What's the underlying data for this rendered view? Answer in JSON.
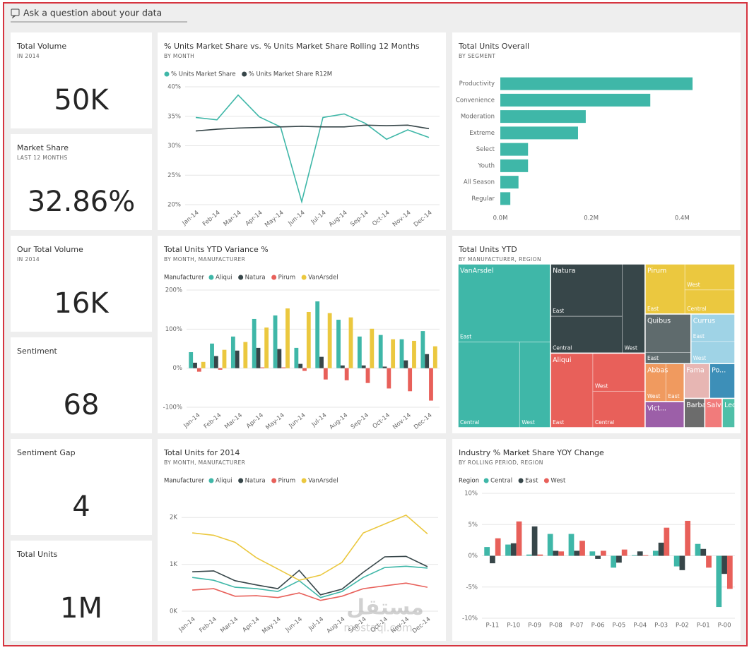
{
  "question_box": "Ask a question about your data",
  "cards": [
    {
      "title": "Total Volume",
      "subtitle": "IN 2014",
      "value": "50K"
    },
    {
      "title": "Market Share",
      "subtitle": "LAST 12 MONTHS",
      "value": "32.86%"
    },
    {
      "title": "Our Total Volume",
      "subtitle": "IN 2014",
      "value": "16K"
    },
    {
      "title": "Sentiment",
      "value": "68"
    },
    {
      "title": "Sentiment Gap",
      "value": "4"
    },
    {
      "title": "Total Units",
      "value": "1M"
    }
  ],
  "chart_data": [
    {
      "type": "line",
      "title": "% Units Market Share vs. % Units Market Share Rolling 12 Months",
      "subtitle": "BY MONTH",
      "categories": [
        "Jan-14",
        "Feb-14",
        "Mar-14",
        "Apr-14",
        "May-14",
        "Jun-14",
        "Jul-14",
        "Aug-14",
        "Sep-14",
        "Oct-14",
        "Nov-14",
        "Dec-14"
      ],
      "series": [
        {
          "name": "% Units Market Share",
          "color": "#3fb7a8",
          "values": [
            34.8,
            34.4,
            38.6,
            34.9,
            33.2,
            20.5,
            34.8,
            35.4,
            33.8,
            31.1,
            32.7,
            31.4
          ]
        },
        {
          "name": "% Units Market Share R12M",
          "color": "#374649",
          "values": [
            32.5,
            32.8,
            33.0,
            33.1,
            33.2,
            33.3,
            33.2,
            33.2,
            33.5,
            33.4,
            33.5,
            32.9
          ]
        }
      ],
      "ylim": [
        20,
        40
      ],
      "yticks": [
        {
          "value": 20,
          "label": "20%"
        },
        {
          "value": 25,
          "label": "25%"
        },
        {
          "value": 30,
          "label": "30%"
        },
        {
          "value": 35,
          "label": "35%"
        },
        {
          "value": 40,
          "label": "40%"
        }
      ],
      "grid": true
    },
    {
      "type": "bar",
      "orientation": "horizontal",
      "title": "Total Units Overall",
      "subtitle": "BY SEGMENT",
      "categories": [
        "Productivity",
        "Convenience",
        "Moderation",
        "Extreme",
        "Select",
        "Youth",
        "All Season",
        "Regular"
      ],
      "values": [
        423000,
        330000,
        188000,
        171000,
        61000,
        61000,
        40000,
        22000
      ],
      "color": "#3fb7a8",
      "xlim": [
        0,
        510000
      ],
      "xticks": [
        {
          "value": 0,
          "label": "0.0M"
        },
        {
          "value": 200000,
          "label": "0.2M"
        },
        {
          "value": 400000,
          "label": "0.4M"
        }
      ],
      "grid": false
    },
    {
      "type": "bar",
      "title": "Total Units YTD Variance %",
      "subtitle": "BY MONTH, MANUFACTURER",
      "legend_title": "Manufacturer",
      "categories": [
        "Jan-14",
        "Feb-14",
        "Mar-14",
        "Apr-14",
        "May-14",
        "Jun-14",
        "Jul-14",
        "Aug-14",
        "Sep-14",
        "Oct-14",
        "Nov-14",
        "Dec-14"
      ],
      "series": [
        {
          "name": "Aliqui",
          "color": "#3fb7a8",
          "values": [
            41,
            63,
            81,
            126,
            135,
            52,
            171,
            124,
            81,
            85,
            74,
            95
          ]
        },
        {
          "name": "Natura",
          "color": "#374649",
          "values": [
            14,
            31,
            45,
            52,
            49,
            11,
            29,
            7,
            7,
            4,
            20,
            36
          ]
        },
        {
          "name": "Pirum",
          "color": "#e8605a",
          "values": [
            -9,
            -4,
            0,
            2,
            2,
            -7,
            -29,
            -31,
            -38,
            -52,
            -59,
            -83
          ]
        },
        {
          "name": "VanArsdel",
          "color": "#ebc83f",
          "values": [
            16,
            47,
            67,
            104,
            153,
            144,
            141,
            130,
            101,
            74,
            70,
            56
          ]
        }
      ],
      "ylim": [
        -100,
        200
      ],
      "yticks": [
        {
          "value": -100,
          "label": "-100%"
        },
        {
          "value": 0,
          "label": "0%"
        },
        {
          "value": 100,
          "label": "100%"
        },
        {
          "value": 200,
          "label": "200%"
        }
      ],
      "grid": true
    },
    {
      "type": "treemap",
      "title": "Total Units YTD",
      "subtitle": "BY MANUFACTURER, REGION",
      "groups": [
        {
          "name": "VanArsdel",
          "color": "#3fb7a8",
          "regions": [
            {
              "name": "East",
              "value": 156000
            },
            {
              "name": "Central",
              "value": 114000
            },
            {
              "name": "West",
              "value": 57000
            }
          ]
        },
        {
          "name": "Natura",
          "color": "#374649",
          "regions": [
            {
              "name": "East",
              "value": 81000
            },
            {
              "name": "Central",
              "value": 57000
            },
            {
              "name": "West",
              "value": 44000
            }
          ]
        },
        {
          "name": "Aliqui",
          "color": "#e8605a",
          "regions": [
            {
              "name": "East",
              "value": 68000
            },
            {
              "name": "West",
              "value": 43000
            },
            {
              "name": "Central",
              "value": 41000
            }
          ]
        },
        {
          "name": "Pirum",
          "color": "#ebc83f",
          "regions": [
            {
              "name": "East",
              "value": 43000
            },
            {
              "name": "West",
              "value": 28000
            },
            {
              "name": "Central",
              "value": 26000
            }
          ]
        },
        {
          "name": "Quibus",
          "color": "#5f6b6d",
          "regions": [
            {
              "name": null,
              "value": 38000
            },
            {
              "name": "East",
              "value": 11000
            }
          ]
        },
        {
          "name": "Currus",
          "color": "#9fd3e6",
          "regions": [
            {
              "name": "East",
              "value": 26000
            },
            {
              "name": "West",
              "value": 21000
            }
          ]
        },
        {
          "name": "Abbas",
          "color": "#f09a5f",
          "regions": [
            {
              "name": "West",
              "value": 17000
            },
            {
              "name": "East",
              "value": 15000
            }
          ]
        },
        {
          "name": "Vict...",
          "color": "#9c5fa8",
          "regions": [
            {
              "name": null,
              "value": 22000
            }
          ]
        },
        {
          "name": "Fama",
          "color": "#e7b6b3",
          "regions": [
            {
              "name": null,
              "value": 19000
            }
          ]
        },
        {
          "name": "Po...",
          "color": "#3d8fb8",
          "regions": [
            {
              "name": null,
              "value": 19000
            }
          ]
        },
        {
          "name": "Barba",
          "color": "#6c6c6c",
          "regions": [
            {
              "name": null,
              "value": 13000
            }
          ]
        },
        {
          "name": "Salvus",
          "color": "#f17b7b",
          "regions": [
            {
              "name": null,
              "value": 11000
            }
          ]
        },
        {
          "name": "Leo",
          "color": "#4fbfa8",
          "regions": [
            {
              "name": null,
              "value": 8000
            }
          ]
        }
      ]
    },
    {
      "type": "line",
      "title": "Total Units for 2014",
      "subtitle": "BY MONTH, MANUFACTURER",
      "legend_title": "Manufacturer",
      "categories": [
        "Jan-14",
        "Feb-14",
        "Mar-14",
        "Apr-14",
        "May-14",
        "Jun-14",
        "Jul-14",
        "Aug-14",
        "Sep-14",
        "Oct-14",
        "Nov-14",
        "Dec-14"
      ],
      "series": [
        {
          "name": "Aliqui",
          "color": "#3fb7a8",
          "values": [
            720,
            660,
            510,
            480,
            420,
            650,
            290,
            420,
            720,
            930,
            960,
            920
          ]
        },
        {
          "name": "Natura",
          "color": "#374649",
          "values": [
            840,
            860,
            650,
            560,
            480,
            870,
            350,
            470,
            830,
            1160,
            1170,
            950
          ]
        },
        {
          "name": "Pirum",
          "color": "#e8605a",
          "values": [
            450,
            480,
            320,
            330,
            290,
            390,
            230,
            320,
            480,
            540,
            600,
            510
          ]
        },
        {
          "name": "VanArsdel",
          "color": "#ebc83f",
          "values": [
            1670,
            1620,
            1470,
            1140,
            900,
            660,
            770,
            1040,
            1670,
            1860,
            2050,
            1650
          ]
        }
      ],
      "ylim": [
        0,
        2500
      ],
      "yticks": [
        {
          "value": 0,
          "label": "0K"
        },
        {
          "value": 1000,
          "label": "1K"
        },
        {
          "value": 2000,
          "label": "2K"
        }
      ],
      "grid": true
    },
    {
      "type": "bar",
      "title": "Industry % Market Share YOY Change",
      "subtitle": "BY ROLLING PERIOD, REGION",
      "legend_title": "Region",
      "categories": [
        "P-11",
        "P-10",
        "P-09",
        "P-08",
        "P-07",
        "P-06",
        "P-05",
        "P-04",
        "P-03",
        "P-02",
        "P-01",
        "P-00"
      ],
      "series": [
        {
          "name": "Central",
          "color": "#3fb7a8",
          "values": [
            1.4,
            1.8,
            0.2,
            3.5,
            3.5,
            0.7,
            -1.9,
            0.1,
            0.8,
            -1.7,
            1.9,
            -8.2
          ]
        },
        {
          "name": "East",
          "color": "#374649",
          "values": [
            -1.2,
            2.0,
            4.7,
            0.8,
            0.8,
            -0.5,
            -1.1,
            0.7,
            2.1,
            -2.3,
            1.1,
            -2.9
          ]
        },
        {
          "name": "West",
          "color": "#e8605a",
          "values": [
            2.8,
            5.5,
            0.2,
            0.7,
            2.4,
            0.8,
            1.0,
            0.1,
            4.5,
            5.6,
            -1.9,
            -5.3
          ]
        }
      ],
      "ylim": [
        -10,
        10
      ],
      "yticks": [
        {
          "value": -10,
          "label": "-10%"
        },
        {
          "value": -5,
          "label": "-5%"
        },
        {
          "value": 0,
          "label": "0%"
        },
        {
          "value": 5,
          "label": "5%"
        },
        {
          "value": 10,
          "label": "10%"
        }
      ],
      "grid": true
    }
  ],
  "watermark": {
    "logo": "مستقل",
    "site": "mostaql.com"
  }
}
